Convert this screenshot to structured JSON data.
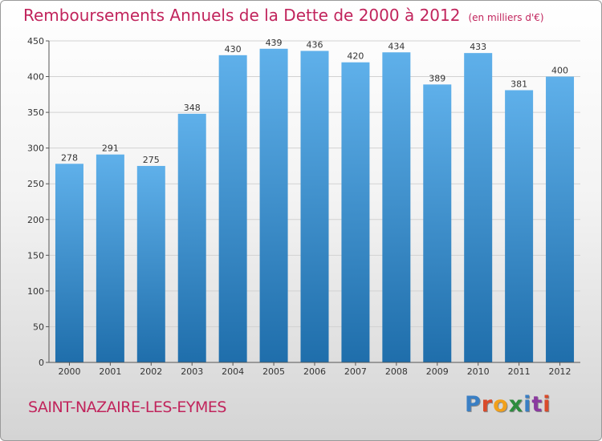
{
  "header": {
    "title": "Remboursements Annuels de la Dette de 2000 à 2012",
    "unit": "(en milliers d'€)"
  },
  "footer": {
    "location": "SAINT-NAZAIRE-LES-EYMES",
    "logo": "Proxiti",
    "logo_colors": [
      "#3a7fc4",
      "#d94b2b",
      "#f1a01b",
      "#2d8c3e",
      "#3a7fc4",
      "#8b3aa0",
      "#d94b2b"
    ]
  },
  "colors": {
    "bar_top": "#5fb0ea",
    "bar_bottom": "#1f6eab",
    "grid": "#d2d2d2",
    "axis": "#555555",
    "title": "#c1245c"
  },
  "chart_data": {
    "type": "bar",
    "title": "Remboursements Annuels de la Dette de 2000 à 2012",
    "xlabel": "",
    "ylabel": "",
    "categories": [
      "2000",
      "2001",
      "2002",
      "2003",
      "2004",
      "2005",
      "2006",
      "2007",
      "2008",
      "2009",
      "2010",
      "2011",
      "2012"
    ],
    "values": [
      278,
      291,
      275,
      348,
      430,
      439,
      436,
      420,
      434,
      389,
      433,
      381,
      400
    ],
    "ylim": [
      0,
      450
    ],
    "yticks": [
      0,
      50,
      100,
      150,
      200,
      250,
      300,
      350,
      400,
      450
    ],
    "grid": true,
    "data_labels": true
  }
}
